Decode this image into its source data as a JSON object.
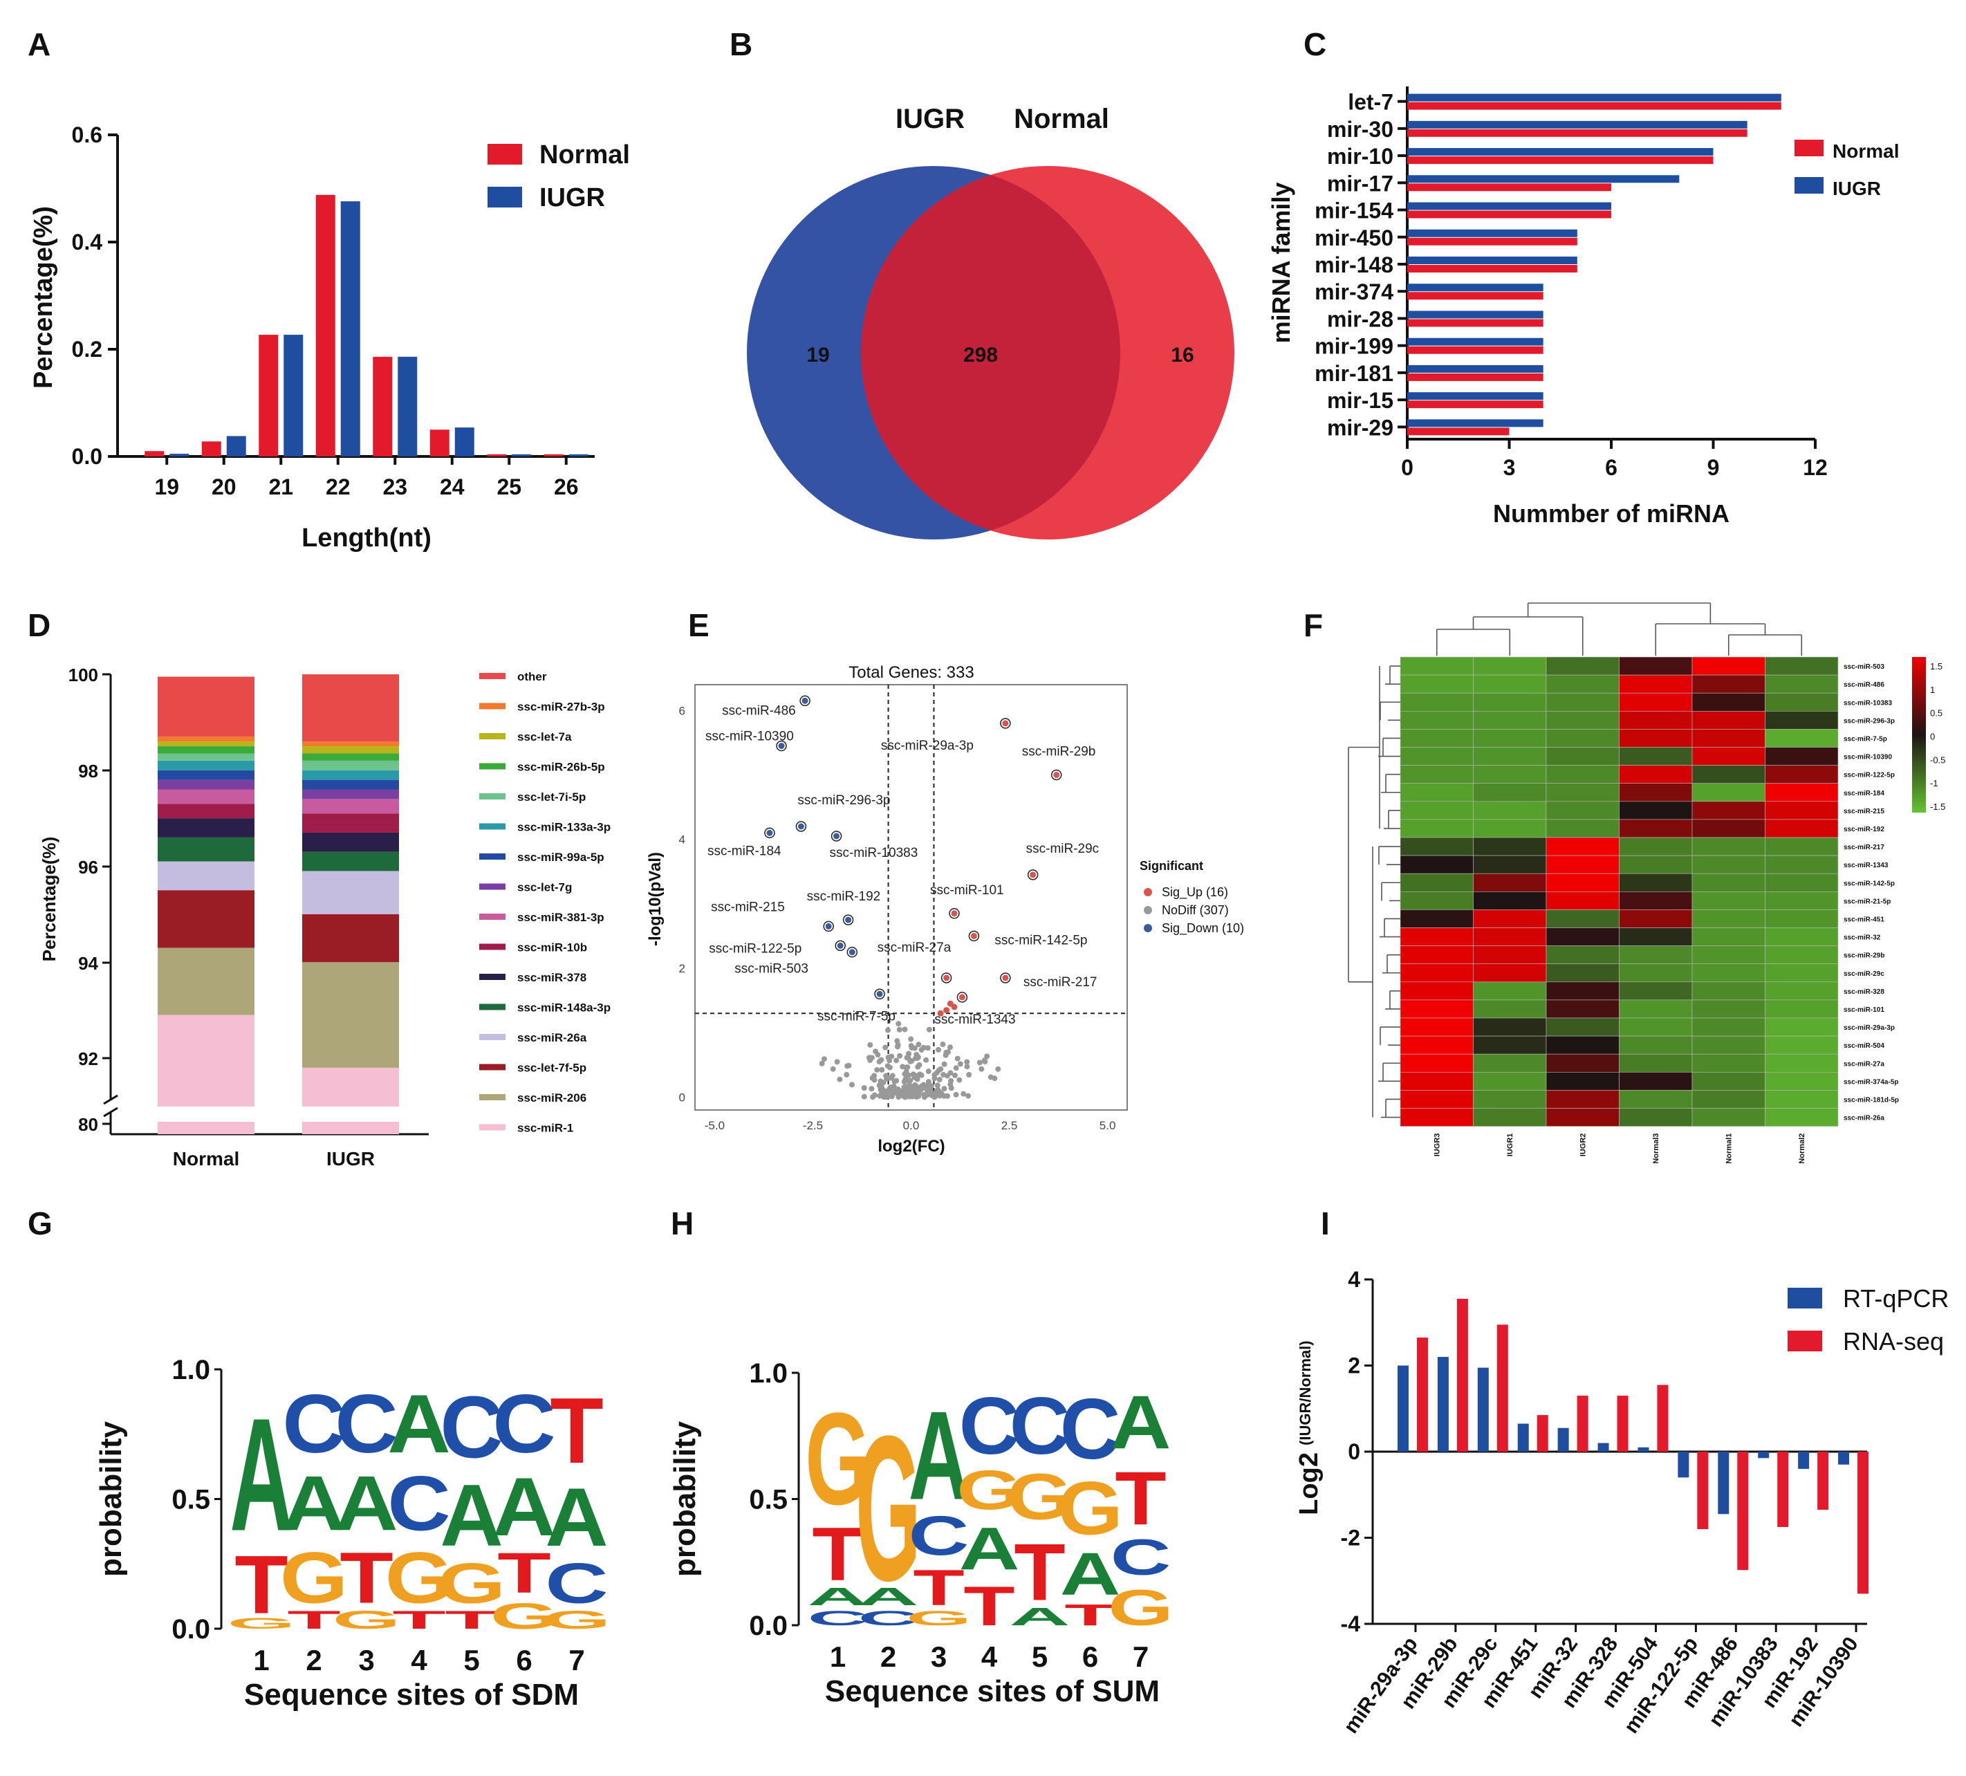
{
  "colors": {
    "normal": "#e31a2b",
    "iugr": "#1f4da0",
    "up": "#d9534f",
    "nodiff": "#999999",
    "down": "#3b5b9a",
    "A": "#1a7f37",
    "C": "#1f4fa8",
    "G": "#f0a020",
    "T": "#e31a1c"
  },
  "chart_data": [
    {
      "panel": "A",
      "type": "bar",
      "letter": "A",
      "title": "",
      "categories": [
        "19",
        "20",
        "21",
        "22",
        "23",
        "24",
        "25",
        "26"
      ],
      "series": [
        {
          "name": "Normal",
          "values": [
            0.01,
            0.028,
            0.227,
            0.488,
            0.186,
            0.05,
            0.004,
            0.004
          ]
        },
        {
          "name": "IUGR",
          "values": [
            0.005,
            0.038,
            0.227,
            0.476,
            0.186,
            0.054,
            0.004,
            0.004
          ]
        }
      ],
      "xlabel": "Length(nt)",
      "ylabel": "Percentage(%)",
      "ylim": [
        0,
        0.6
      ],
      "yticks": [
        "0.0",
        "0.2",
        "0.4",
        "0.6"
      ],
      "legend": [
        "Normal",
        "IUGR"
      ]
    },
    {
      "panel": "B",
      "type": "venn",
      "letter": "B",
      "sets": [
        "IUGR",
        "Normal"
      ],
      "only_left": "19",
      "both": "298",
      "only_right": "16"
    },
    {
      "panel": "C",
      "type": "bar",
      "letter": "C",
      "orientation": "horizontal",
      "categories": [
        "let-7",
        "mir-30",
        "mir-10",
        "mir-17",
        "mir-154",
        "mir-450",
        "mir-148",
        "mir-374",
        "mir-28",
        "mir-199",
        "mir-181",
        "mir-15",
        "mir-29"
      ],
      "series": [
        {
          "name": "Normal",
          "values": [
            11,
            10,
            9,
            6,
            6,
            5,
            5,
            4,
            4,
            4,
            4,
            4,
            3
          ]
        },
        {
          "name": "IUGR",
          "values": [
            11,
            10,
            9,
            8,
            6,
            5,
            5,
            4,
            4,
            4,
            4,
            4,
            4
          ]
        }
      ],
      "xlabel": "Nummber of miRNA",
      "ylabel": "miRNA family",
      "xlim": [
        0,
        12
      ],
      "xticks": [
        "0",
        "3",
        "6",
        "9",
        "12"
      ],
      "legend": [
        "Normal",
        "IUGR"
      ]
    },
    {
      "panel": "D",
      "type": "bar",
      "letter": "D",
      "stacked": true,
      "categories": [
        "Normal",
        "IUGR"
      ],
      "ylabel": "Percentage(%)",
      "yticks": [
        "80",
        "92",
        "94",
        "96",
        "98",
        "100"
      ],
      "legend": [
        "other",
        "ssc-miR-27b-3p",
        "ssc-let-7a",
        "ssc-miR-26b-5p",
        "ssc-let-7i-5p",
        "ssc-miR-133a-3p",
        "ssc-miR-99a-5p",
        "ssc-let-7g",
        "ssc-miR-381-3p",
        "ssc-miR-10b",
        "ssc-miR-378",
        "ssc-miR-148a-3p",
        "ssc-miR-26a",
        "ssc-let-7f-5p",
        "ssc-miR-206",
        "ssc-miR-1"
      ],
      "legend_colors": [
        "#e84a4a",
        "#f07b2a",
        "#b8b41c",
        "#3aaa3a",
        "#6cc48c",
        "#2a9aa8",
        "#234aa0",
        "#7a3fa0",
        "#c85aa0",
        "#a01c4a",
        "#2a1f4a",
        "#1f6a3a",
        "#c4bde0",
        "#9a1c24",
        "#ada678",
        "#f5bed2"
      ],
      "normal_values": {
        "bottom": 80.3,
        "segments": [
          [
            92.9,
            "#f5bed2"
          ],
          [
            94.3,
            "#ada678"
          ],
          [
            95.5,
            "#9a1c24"
          ],
          [
            96.1,
            "#c4bde0"
          ],
          [
            96.6,
            "#1f6a3a"
          ],
          [
            97.0,
            "#2a1f4a"
          ],
          [
            97.3,
            "#a01c4a"
          ],
          [
            97.6,
            "#c85aa0"
          ],
          [
            97.8,
            "#7a3fa0"
          ],
          [
            98.0,
            "#234aa0"
          ],
          [
            98.2,
            "#2a9aa8"
          ],
          [
            98.35,
            "#6cc48c"
          ],
          [
            98.5,
            "#3aaa3a"
          ],
          [
            98.6,
            "#b8b41c"
          ],
          [
            98.7,
            "#f07b2a"
          ],
          [
            99.95,
            "#e84a4a"
          ]
        ]
      },
      "iugr_values": {
        "bottom": 80.3,
        "segments": [
          [
            91.8,
            "#f5bed2"
          ],
          [
            94.0,
            "#ada678"
          ],
          [
            95.0,
            "#9a1c24"
          ],
          [
            95.9,
            "#c4bde0"
          ],
          [
            96.3,
            "#1f6a3a"
          ],
          [
            96.7,
            "#2a1f4a"
          ],
          [
            97.1,
            "#a01c4a"
          ],
          [
            97.4,
            "#c85aa0"
          ],
          [
            97.6,
            "#7a3fa0"
          ],
          [
            97.8,
            "#234aa0"
          ],
          [
            98.0,
            "#2a9aa8"
          ],
          [
            98.2,
            "#6cc48c"
          ],
          [
            98.35,
            "#3aaa3a"
          ],
          [
            98.5,
            "#b8b41c"
          ],
          [
            98.6,
            "#f07b2a"
          ],
          [
            100.0,
            "#e84a4a"
          ]
        ]
      }
    },
    {
      "panel": "E",
      "type": "scatter",
      "letter": "E",
      "title": "Total Genes: 333",
      "xlabel": "log2(FC)",
      "ylabel": "-log10(pVal)",
      "xlim": [
        -5.5,
        5.5
      ],
      "ylim": [
        -0.2,
        6.4
      ],
      "xticks": [
        "-5.0",
        "-2.5",
        "0.0",
        "2.5",
        "5.0"
      ],
      "yticks": [
        "0",
        "2",
        "4",
        "6"
      ],
      "legend_title": "Significant",
      "legend": [
        "Sig_Up (16)",
        "NoDiff (307)",
        "Sig_Down (10)"
      ],
      "labeled_points": [
        {
          "label": "ssc-miR-486",
          "x": -2.7,
          "y": 6.15,
          "sig": "down"
        },
        {
          "label": "ssc-miR-10390",
          "x": -3.3,
          "y": 5.45,
          "sig": "down"
        },
        {
          "label": "ssc-miR-29a-3p",
          "x": 2.4,
          "y": 5.8,
          "sig": "up"
        },
        {
          "label": "ssc-miR-29b",
          "x": 3.7,
          "y": 5.0,
          "sig": "up"
        },
        {
          "label": "ssc-miR-296-3p",
          "x": -2.8,
          "y": 4.2,
          "sig": "down"
        },
        {
          "label": "ssc-miR-184",
          "x": -3.6,
          "y": 4.1,
          "sig": "down"
        },
        {
          "label": "ssc-miR-10383",
          "x": -1.9,
          "y": 4.05,
          "sig": "down"
        },
        {
          "label": "ssc-miR-29c",
          "x": 3.1,
          "y": 3.45,
          "sig": "up"
        },
        {
          "label": "ssc-miR-192",
          "x": -1.6,
          "y": 2.75,
          "sig": "down"
        },
        {
          "label": "ssc-miR-101",
          "x": 1.1,
          "y": 2.85,
          "sig": "up"
        },
        {
          "label": "ssc-miR-215",
          "x": -2.1,
          "y": 2.65,
          "sig": "down"
        },
        {
          "label": "ssc-miR-142-5p",
          "x": 1.6,
          "y": 2.5,
          "sig": "up"
        },
        {
          "label": "ssc-miR-122-5p",
          "x": -1.8,
          "y": 2.35,
          "sig": "down"
        },
        {
          "label": "ssc-miR-27a",
          "x": 0.9,
          "y": 1.85,
          "sig": "up"
        },
        {
          "label": "ssc-miR-503",
          "x": -1.5,
          "y": 2.25,
          "sig": "down"
        },
        {
          "label": "ssc-miR-217",
          "x": 2.4,
          "y": 1.85,
          "sig": "up"
        },
        {
          "label": "ssc-miR-7-5p",
          "x": -0.8,
          "y": 1.6,
          "sig": "down"
        },
        {
          "label": "ssc-miR-1343",
          "x": 1.3,
          "y": 1.55,
          "sig": "up"
        }
      ]
    },
    {
      "panel": "F",
      "type": "heatmap",
      "letter": "F",
      "columns": [
        "IUGR3",
        "IUGR1",
        "IUGR2",
        "Normal3",
        "Normal1",
        "Normal2"
      ],
      "rows": [
        "ssc-miR-503",
        "ssc-miR-486",
        "ssc-miR-10383",
        "ssc-miR-296-3p",
        "ssc-miR-7-5p",
        "ssc-miR-10390",
        "ssc-miR-122-5p",
        "ssc-miR-184",
        "ssc-miR-215",
        "ssc-miR-192",
        "ssc-miR-217",
        "ssc-miR-1343",
        "ssc-miR-142-5p",
        "ssc-miR-21-5p",
        "ssc-miR-451",
        "ssc-miR-32",
        "ssc-miR-29b",
        "ssc-miR-29c",
        "ssc-miR-328",
        "ssc-miR-101",
        "ssc-miR-29a-3p",
        "ssc-miR-504",
        "ssc-miR-27a",
        "ssc-miR-374a-5p",
        "ssc-miR-181d-5p",
        "ssc-miR-26a"
      ],
      "scale": [
        "1.5",
        "1",
        "0.5",
        "0",
        "-0.5",
        "-1",
        "-1.5"
      ],
      "values": [
        [
          -1.2,
          -1.2,
          -0.8,
          0.3,
          1.5,
          -0.8
        ],
        [
          -1.2,
          -1.2,
          -1.0,
          1.4,
          0.7,
          -1.0
        ],
        [
          -1.1,
          -1.1,
          -1.0,
          1.4,
          0.2,
          -0.9
        ],
        [
          -1.1,
          -1.1,
          -1.0,
          1.2,
          1.2,
          -0.3
        ],
        [
          -1.1,
          -1.1,
          -1.0,
          1.2,
          1.2,
          -1.3
        ],
        [
          -1.1,
          -1.1,
          -0.9,
          -0.6,
          1.3,
          0.2
        ],
        [
          -1.1,
          -1.1,
          -1.0,
          1.3,
          -0.5,
          0.8
        ],
        [
          -1.2,
          -1.0,
          -1.0,
          0.7,
          -1.2,
          1.5
        ],
        [
          -1.2,
          -1.2,
          -1.0,
          0.0,
          0.8,
          1.3
        ],
        [
          -1.2,
          -1.2,
          -1.0,
          0.7,
          0.6,
          1.3
        ],
        [
          -0.5,
          -0.3,
          1.5,
          -0.9,
          -1.0,
          -1.0
        ],
        [
          0.0,
          -0.2,
          1.5,
          -0.9,
          -1.0,
          -1.0
        ],
        [
          -0.8,
          0.7,
          1.5,
          -0.3,
          -1.0,
          -1.0
        ],
        [
          -0.9,
          0.0,
          1.4,
          0.3,
          -1.1,
          -1.1
        ],
        [
          0.1,
          1.3,
          -0.7,
          0.8,
          -1.1,
          -1.1
        ],
        [
          1.4,
          1.3,
          0.1,
          -0.2,
          -1.1,
          -1.2
        ],
        [
          1.4,
          1.3,
          -0.8,
          -1.0,
          -1.1,
          -1.2
        ],
        [
          1.4,
          1.3,
          -0.6,
          -1.0,
          -1.1,
          -1.2
        ],
        [
          1.4,
          -1.1,
          0.2,
          -0.7,
          -1.0,
          -1.2
        ],
        [
          1.5,
          -1.0,
          0.3,
          -1.1,
          -1.0,
          -1.2
        ],
        [
          1.5,
          -0.2,
          -0.6,
          -1.1,
          -1.0,
          -1.3
        ],
        [
          1.5,
          -0.2,
          0.0,
          -1.0,
          -1.0,
          -1.3
        ],
        [
          1.5,
          -1.0,
          0.4,
          -0.9,
          -1.0,
          -1.3
        ],
        [
          1.4,
          -1.1,
          0.0,
          0.1,
          -0.9,
          -1.3
        ],
        [
          1.4,
          -1.0,
          0.8,
          -1.0,
          -0.9,
          -1.3
        ],
        [
          1.4,
          -0.9,
          0.8,
          -0.8,
          -1.0,
          -1.3
        ]
      ]
    },
    {
      "panel": "G",
      "type": "sequence-logo",
      "letter": "G",
      "xlabel": "Sequence sites of SDM",
      "ylabel": "probability",
      "yticks": [
        "0.0",
        "0.5",
        "1.0"
      ],
      "positions": [
        "1",
        "2",
        "3",
        "4",
        "5",
        "6",
        "7"
      ],
      "stacks": [
        [
          [
            "G",
            0.06
          ],
          [
            "T",
            0.32
          ],
          [
            "A",
            0.62
          ]
        ],
        [
          [
            "T",
            0.1
          ],
          [
            "G",
            0.28
          ],
          [
            "A",
            0.3
          ],
          [
            "C",
            0.32
          ]
        ],
        [
          [
            "G",
            0.1
          ],
          [
            "T",
            0.28
          ],
          [
            "A",
            0.3
          ],
          [
            "C",
            0.32
          ]
        ],
        [
          [
            "T",
            0.1
          ],
          [
            "G",
            0.28
          ],
          [
            "C",
            0.3
          ],
          [
            "A",
            0.32
          ]
        ],
        [
          [
            "T",
            0.1
          ],
          [
            "G",
            0.22
          ],
          [
            "A",
            0.34
          ],
          [
            "C",
            0.34
          ]
        ],
        [
          [
            "G",
            0.14
          ],
          [
            "T",
            0.22
          ],
          [
            "A",
            0.32
          ],
          [
            "C",
            0.32
          ]
        ],
        [
          [
            "G",
            0.1
          ],
          [
            "C",
            0.22
          ],
          [
            "A",
            0.32
          ],
          [
            "T",
            0.36
          ]
        ]
      ]
    },
    {
      "panel": "H",
      "type": "sequence-logo",
      "letter": "H",
      "xlabel": "Sequence sites of SUM",
      "ylabel": "probability",
      "yticks": [
        "0.0",
        "0.5",
        "1.0"
      ],
      "positions": [
        "1",
        "2",
        "3",
        "4",
        "5",
        "6",
        "7"
      ],
      "stacks": [
        [
          [
            "C",
            0.08
          ],
          [
            "A",
            0.1
          ],
          [
            "T",
            0.3
          ],
          [
            "G",
            0.52
          ]
        ],
        [
          [
            "C",
            0.08
          ],
          [
            "A",
            0.1
          ],
          [
            "G",
            0.82
          ]
        ],
        [
          [
            "G",
            0.08
          ],
          [
            "T",
            0.2
          ],
          [
            "C",
            0.22
          ],
          [
            "A",
            0.5
          ]
        ],
        [
          [
            "T",
            0.22
          ],
          [
            "A",
            0.24
          ],
          [
            "G",
            0.22
          ],
          [
            "C",
            0.32
          ]
        ],
        [
          [
            "A",
            0.1
          ],
          [
            "T",
            0.32
          ],
          [
            "G",
            0.26
          ],
          [
            "C",
            0.32
          ]
        ],
        [
          [
            "T",
            0.12
          ],
          [
            "A",
            0.24
          ],
          [
            "G",
            0.3
          ],
          [
            "C",
            0.34
          ]
        ],
        [
          [
            "G",
            0.2
          ],
          [
            "C",
            0.2
          ],
          [
            "T",
            0.3
          ],
          [
            "A",
            0.3
          ]
        ]
      ]
    },
    {
      "panel": "I",
      "type": "bar",
      "letter": "I",
      "categories": [
        "miR-29a-3p",
        "miR-29b",
        "miR-29c",
        "miR-451",
        "miR-32",
        "miR-328",
        "miR-504",
        "miR-122-5p",
        "miR-486",
        "miR-10383",
        "miR-192",
        "miR-10390"
      ],
      "series": [
        {
          "name": "RT-qPCR",
          "values": [
            2.0,
            2.2,
            1.95,
            0.65,
            0.55,
            0.2,
            0.1,
            -0.6,
            -1.45,
            -0.15,
            -0.4,
            -0.3
          ]
        },
        {
          "name": "RNA-seq",
          "values": [
            2.65,
            3.55,
            2.95,
            0.85,
            1.3,
            1.3,
            1.55,
            -1.8,
            -2.75,
            -1.75,
            -1.35,
            -3.3
          ]
        }
      ],
      "ylabel_main": "Log2",
      "ylabel_sup": "(IUGR/Normal)",
      "ylim": [
        -4,
        4
      ],
      "yticks": [
        "-4",
        "-2",
        "0",
        "2",
        "4"
      ],
      "legend": [
        "RT-qPCR",
        "RNA-seq"
      ]
    }
  ]
}
